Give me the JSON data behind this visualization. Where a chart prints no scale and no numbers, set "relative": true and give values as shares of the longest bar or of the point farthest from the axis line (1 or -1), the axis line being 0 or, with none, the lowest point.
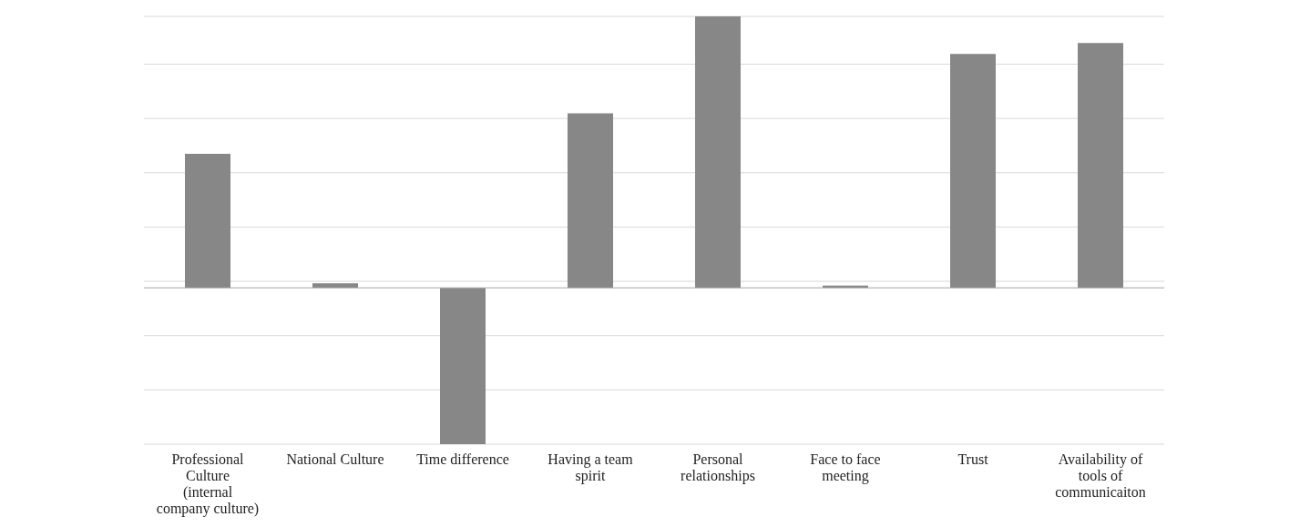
{
  "chart_data": {
    "type": "bar",
    "relative": true,
    "categories": [
      "Professional Culture (internal company culture)",
      "National Culture",
      "Time difference",
      "Having a team spirit",
      "Personal relationships",
      "Face to face meeting",
      "Trust",
      "Availability of tools of communicaiton"
    ],
    "values": [
      0.494,
      0.017,
      -0.576,
      0.643,
      1,
      0.008,
      0.862,
      0.902
    ],
    "color": "#878787",
    "grid": "y"
  }
}
